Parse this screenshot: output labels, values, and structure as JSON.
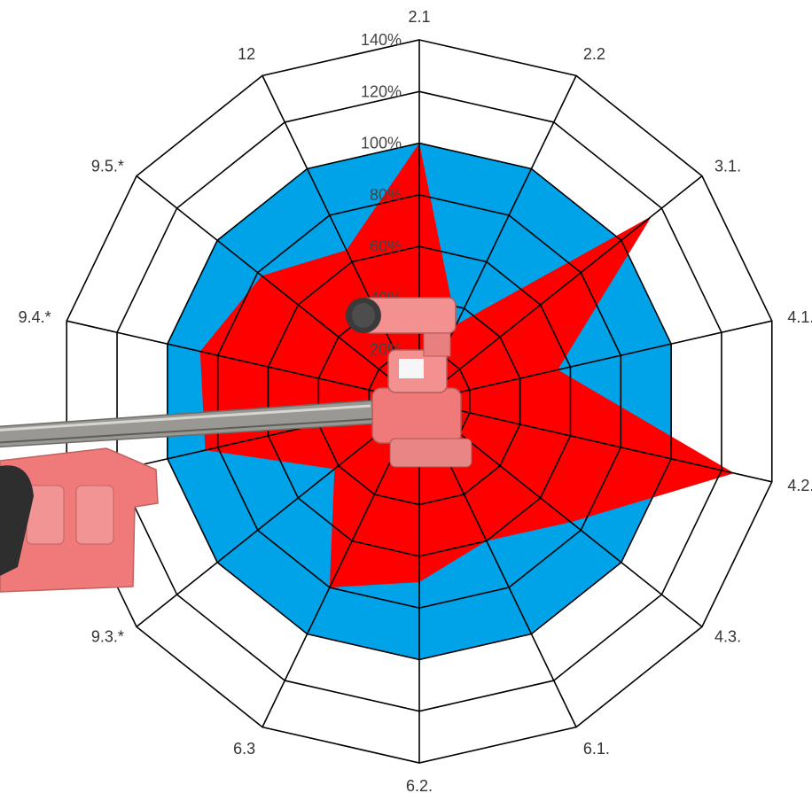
{
  "chart_data": {
    "type": "radar",
    "title": "",
    "categories": [
      "2.1",
      "2.2",
      "3.1.",
      "4.1.",
      "4.2.",
      "4.3.",
      "6.1.",
      "6.2.",
      "6.3",
      "9.3.*",
      "",
      "9.4.*",
      "9.5.*",
      "12"
    ],
    "rlim": [
      0,
      140
    ],
    "rticks": [
      "20%",
      "40%",
      "60%",
      "80%",
      "100%",
      "120%",
      "140%"
    ],
    "grid": true,
    "legend": "none",
    "series": [
      {
        "values": [
          100,
          100,
          100,
          100,
          100,
          100,
          100,
          100,
          100,
          100,
          100,
          100,
          100,
          100
        ],
        "color": "#00a2e8"
      },
      {
        "values": [
          100,
          33,
          115,
          55,
          125,
          75,
          60,
          70,
          80,
          42,
          85,
          87,
          78,
          65
        ],
        "color": "#ff0000"
      }
    ]
  },
  "overlay": {
    "description_icon": "wrench-tool-icon"
  },
  "colors": {
    "grid": "#000000",
    "background": "#ffffff",
    "tool_pink": "#f07070",
    "tool_steel": "#8a8a86"
  }
}
